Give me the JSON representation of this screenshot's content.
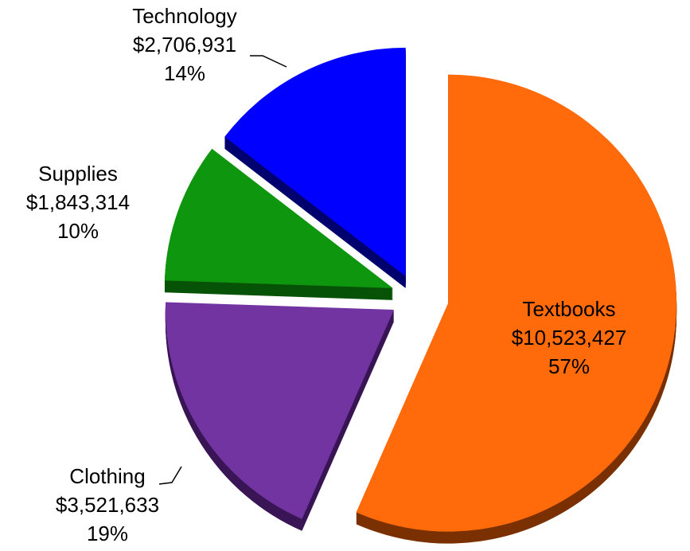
{
  "chart_data": {
    "type": "pie",
    "categories": [
      "Textbooks",
      "Clothing",
      "Supplies",
      "Technology"
    ],
    "values": [
      10523427,
      3521633,
      1843314,
      2706931
    ],
    "value_labels": [
      "$10,523,427",
      "$3,521,633",
      "$1,843,314",
      "$2,706,931"
    ],
    "percent_labels": [
      "57%",
      "19%",
      "10%",
      "14%"
    ],
    "colors": [
      "#ff6a0a",
      "#7234a0",
      "#0f960f",
      "#0000ff"
    ],
    "depth_colors": [
      "#7a3000",
      "#3a1656",
      "#075207",
      "#00006e"
    ]
  }
}
